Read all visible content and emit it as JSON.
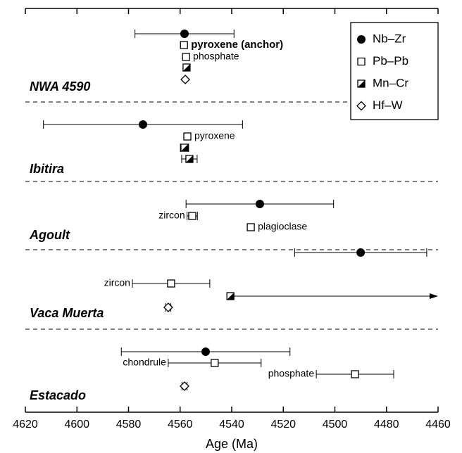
{
  "chart_data": {
    "type": "age-ranges",
    "xlabel": "Age (Ma)",
    "xlim": [
      4620,
      4460
    ],
    "xticks": [
      4620,
      4600,
      4580,
      4560,
      4540,
      4520,
      4500,
      4480,
      4460
    ],
    "methods": [
      {
        "name": "Nb–Zr",
        "marker": "circle"
      },
      {
        "name": "Pb–Pb",
        "marker": "square"
      },
      {
        "name": "Mn–Cr",
        "marker": "half-square"
      },
      {
        "name": "Hf–W",
        "marker": "diamond"
      }
    ],
    "groups": [
      {
        "name": "NWA 4590",
        "points": [
          {
            "method": 0,
            "value": 4558.3,
            "error": 19.2
          },
          {
            "method": 1,
            "value": 4558.5,
            "label": "pyroxene (anchor)",
            "bold": true
          },
          {
            "method": 1,
            "value": 4557.7,
            "label": "phosphate"
          },
          {
            "method": 2,
            "value": 4557.5
          },
          {
            "method": 3,
            "value": 4558
          }
        ]
      },
      {
        "name": "Ibitira",
        "points": [
          {
            "method": 0,
            "value": 4574.4,
            "error": 38.6
          },
          {
            "method": 1,
            "value": 4557.2,
            "label": "pyroxene"
          },
          {
            "method": 2,
            "value": 4558.3,
            "error": 1.6
          },
          {
            "method": 2,
            "value": 4556.4,
            "error": 3
          }
        ]
      },
      {
        "name": "Agoult",
        "points": [
          {
            "method": 0,
            "value": 4529.1,
            "error": 28.6
          },
          {
            "method": 1,
            "value": 4555.3,
            "error": 2,
            "label": "zircon"
          },
          {
            "method": 1,
            "value": 4532.6,
            "label": "plagioclase"
          }
        ]
      },
      {
        "name": "Vaca Muerta",
        "points": [
          {
            "method": 0,
            "value": 4490,
            "error": 25.6
          },
          {
            "method": 1,
            "value": 4563.5,
            "error": 15,
            "label": "zircon"
          },
          {
            "method": 2,
            "value": 4540.5,
            "arrow": true
          },
          {
            "method": 3,
            "value": 4564.6,
            "error": 1
          }
        ]
      },
      {
        "name": "Estacado",
        "points": [
          {
            "method": 0,
            "value": 4550.1,
            "error": 32.7
          },
          {
            "method": 1,
            "value": 4546.6,
            "error": 18,
            "label": "chondrule"
          },
          {
            "method": 1,
            "value": 4492.2,
            "error": 15,
            "label": "phosphate"
          },
          {
            "method": 3,
            "value": 4558.3,
            "error": 1
          }
        ]
      }
    ]
  }
}
